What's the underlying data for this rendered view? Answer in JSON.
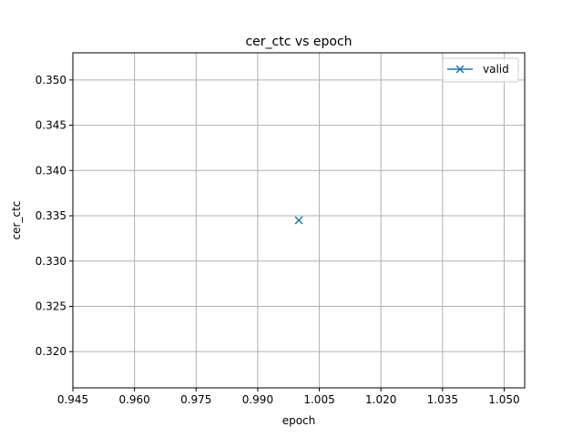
{
  "chart_data": {
    "type": "line",
    "title": "cer_ctc vs epoch",
    "xlabel": "epoch",
    "ylabel": "cer_ctc",
    "xlim": [
      0.945,
      1.055
    ],
    "ylim": [
      0.316,
      0.353
    ],
    "xticks": [
      0.945,
      0.96,
      0.975,
      0.99,
      1.005,
      1.02,
      1.035,
      1.05
    ],
    "xtick_labels": [
      "0.945",
      "0.960",
      "0.975",
      "0.990",
      "1.005",
      "1.020",
      "1.035",
      "1.050"
    ],
    "yticks": [
      0.32,
      0.325,
      0.33,
      0.335,
      0.34,
      0.345,
      0.35
    ],
    "ytick_labels": [
      "0.320",
      "0.325",
      "0.330",
      "0.335",
      "0.340",
      "0.345",
      "0.350"
    ],
    "grid": true,
    "legend_position": "upper right",
    "series": [
      {
        "name": "valid",
        "color": "#1f77b4",
        "marker": "x",
        "x": [
          1.0
        ],
        "y": [
          0.3345
        ]
      }
    ]
  }
}
